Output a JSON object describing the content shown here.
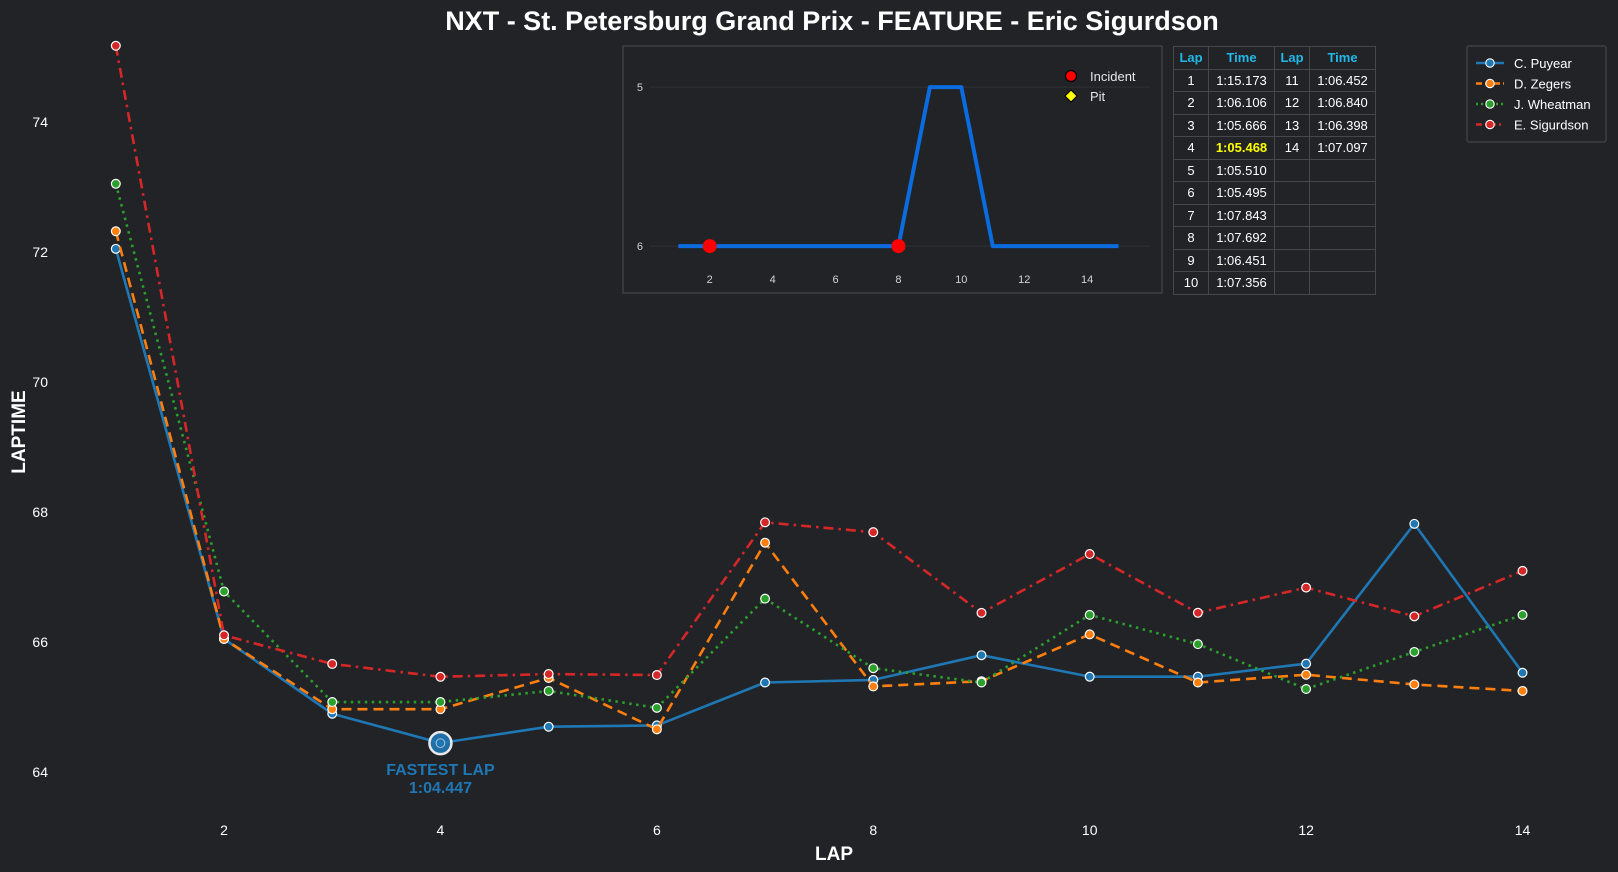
{
  "title": "NXT - St. Petersburg Grand Prix - FEATURE - Eric Sigurdson",
  "chart_data": {
    "type": "line",
    "xlabel": "LAP",
    "ylabel": "LAPTIME",
    "xlim": [
      0.9,
      14.3
    ],
    "ylim": [
      63.45,
      75.2
    ],
    "xticks": [
      2,
      4,
      6,
      8,
      10,
      12,
      14
    ],
    "yticks": [
      64,
      66,
      68,
      70,
      72,
      74
    ],
    "x": [
      1,
      2,
      3,
      4,
      5,
      6,
      7,
      8,
      9,
      10,
      11,
      12,
      13,
      14
    ],
    "series": [
      {
        "name": "C. Puyear",
        "color": "#1f77b4",
        "dash": "solid",
        "values": [
          72.05,
          66.05,
          64.9,
          64.45,
          64.7,
          64.72,
          65.38,
          65.42,
          65.8,
          65.47,
          65.47,
          65.67,
          67.82,
          65.53
        ]
      },
      {
        "name": "D. Zegers",
        "color": "#ff7f0e",
        "dash": "dashed",
        "values": [
          72.32,
          66.05,
          64.97,
          64.97,
          65.45,
          64.66,
          67.53,
          65.32,
          65.4,
          66.12,
          65.38,
          65.5,
          65.35,
          65.25
        ]
      },
      {
        "name": "J. Wheatman",
        "color": "#2ca02c",
        "dash": "dotted",
        "values": [
          73.05,
          66.78,
          65.08,
          65.08,
          65.25,
          64.99,
          66.67,
          65.6,
          65.38,
          66.42,
          65.97,
          65.28,
          65.85,
          66.42
        ]
      },
      {
        "name": "E. Sigurdson",
        "color": "#d62728",
        "dash": "dashdot",
        "values": [
          75.173,
          66.106,
          65.666,
          65.468,
          65.51,
          65.495,
          67.843,
          67.692,
          66.451,
          67.356,
          66.452,
          66.84,
          66.398,
          67.097
        ]
      }
    ],
    "annotation": {
      "label": "FASTEST LAP",
      "value_text": "1:04.447",
      "x": 4,
      "y": 64.447,
      "color": "#1f77b4"
    },
    "legend_position": "top-right",
    "grid": false
  },
  "inset": {
    "type": "line",
    "x": [
      1,
      2,
      3,
      4,
      5,
      6,
      7,
      8,
      9,
      10,
      11,
      12,
      13,
      14,
      15
    ],
    "values": [
      6,
      6,
      6,
      6,
      6,
      6,
      6,
      6,
      5,
      5,
      6,
      6,
      6,
      6,
      6
    ],
    "xticks": [
      2,
      4,
      6,
      8,
      10,
      12,
      14
    ],
    "yticks": [
      5,
      6
    ],
    "xlim": [
      0.1,
      16.0
    ],
    "ylim": [
      6.1,
      4.88
    ],
    "line_color": "#0a6cdf",
    "incidents": [
      {
        "x": 2,
        "y": 6
      },
      {
        "x": 8,
        "y": 6
      }
    ],
    "legend": [
      {
        "label": "Incident",
        "marker": "circle",
        "color": "#ff0000"
      },
      {
        "label": "Pit",
        "marker": "diamond",
        "color": "#ffff00"
      }
    ]
  },
  "table": {
    "headers": [
      "Lap",
      "Time",
      "Lap",
      "Time"
    ],
    "rows": [
      {
        "lap1": "1",
        "time1": "1:15.173",
        "lap2": "11",
        "time2": "1:06.452"
      },
      {
        "lap1": "2",
        "time1": "1:06.106",
        "lap2": "12",
        "time2": "1:06.840"
      },
      {
        "lap1": "3",
        "time1": "1:05.666",
        "lap2": "13",
        "time2": "1:06.398"
      },
      {
        "lap1": "4",
        "time1": "1:05.468",
        "lap2": "14",
        "time2": "1:07.097",
        "best": true
      },
      {
        "lap1": "5",
        "time1": "1:05.510",
        "lap2": "",
        "time2": ""
      },
      {
        "lap1": "6",
        "time1": "1:05.495",
        "lap2": "",
        "time2": ""
      },
      {
        "lap1": "7",
        "time1": "1:07.843",
        "lap2": "",
        "time2": ""
      },
      {
        "lap1": "8",
        "time1": "1:07.692",
        "lap2": "",
        "time2": ""
      },
      {
        "lap1": "9",
        "time1": "1:06.451",
        "lap2": "",
        "time2": ""
      },
      {
        "lap1": "10",
        "time1": "1:07.356",
        "lap2": "",
        "time2": ""
      }
    ]
  }
}
